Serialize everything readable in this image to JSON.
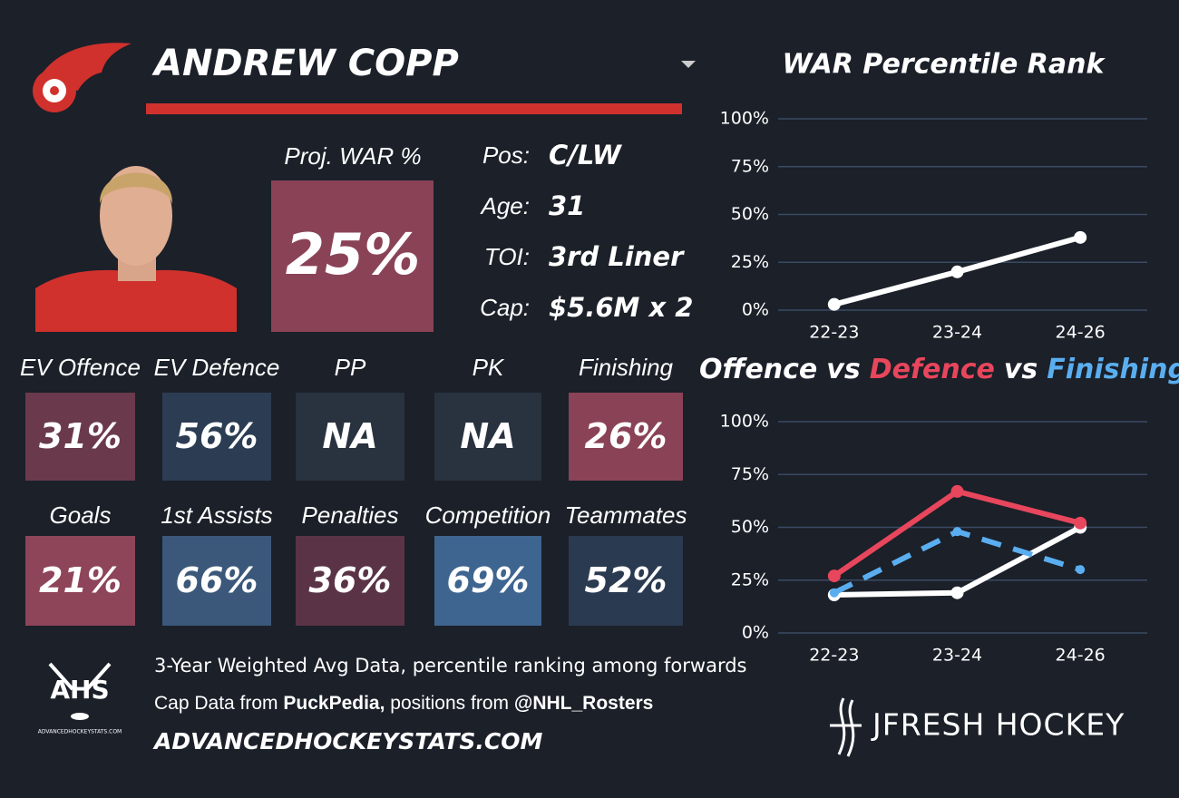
{
  "player": {
    "name": "ANDREW COPP"
  },
  "proj_war": {
    "label": "Proj. WAR %",
    "value": "25%",
    "color": "#8a4356"
  },
  "info": [
    {
      "label": "Pos:",
      "value": "C/LW"
    },
    {
      "label": "Age:",
      "value": "31"
    },
    {
      "label": "TOI:",
      "value": "3rd Liner"
    },
    {
      "label": "Cap:",
      "value": "$5.6M x 2"
    }
  ],
  "tiles": [
    {
      "label": "EV Offence",
      "value": "31%",
      "color": "#6a3a4c"
    },
    {
      "label": "EV Defence",
      "value": "56%",
      "color": "#2c3d53"
    },
    {
      "label": "PP",
      "value": "NA",
      "color": "#29323f"
    },
    {
      "label": "PK",
      "value": "NA",
      "color": "#29323f"
    },
    {
      "label": "Finishing",
      "value": "26%",
      "color": "#8a4356"
    },
    {
      "label": "Goals",
      "value": "21%",
      "color": "#8e4459"
    },
    {
      "label": "1st Assists",
      "value": "66%",
      "color": "#3b587a"
    },
    {
      "label": "Penalties",
      "value": "36%",
      "color": "#5a3446"
    },
    {
      "label": "Competition",
      "value": "69%",
      "color": "#3e6590"
    },
    {
      "label": "Teammates",
      "value": "52%",
      "color": "#2a3a50"
    }
  ],
  "footer": {
    "logo_text": "AHS",
    "logo_sub": "ADVANCEDHOCKEYSTATS.COM",
    "line1": "3-Year Weighted Avg Data, percentile ranking among forwards",
    "line2": [
      {
        "text": "Cap Data from "
      },
      {
        "text": "PuckPedia,",
        "bold": true
      },
      {
        "text": " positions from "
      },
      {
        "text": "@NHL_Rosters",
        "bold": true
      }
    ],
    "site": "ADVANCEDHOCKEYSTATS.COM",
    "brand": "JFRESH HOCKEY"
  },
  "chart_data": [
    {
      "type": "line",
      "title": "WAR Percentile Rank",
      "categories": [
        "22-23",
        "23-24",
        "24-26"
      ],
      "series": [
        {
          "color": "#ffffff",
          "values": [
            3,
            20,
            38
          ]
        }
      ],
      "ylim": [
        0,
        100
      ],
      "yticks": [
        {
          "value": 0,
          "label": "0%"
        },
        {
          "value": 25,
          "label": "25%"
        },
        {
          "value": 50,
          "label": "50%"
        },
        {
          "value": 75,
          "label": "75%"
        },
        {
          "value": 100,
          "label": "100%"
        }
      ],
      "grid": true
    },
    {
      "type": "line",
      "title_joiner": "vs",
      "categories": [
        "22-23",
        "23-24",
        "24-26"
      ],
      "series": [
        {
          "name": "Offence",
          "color": "#ffffff",
          "values": [
            18,
            19,
            50
          ]
        },
        {
          "name": "Defence",
          "color": "#e8465c",
          "values": [
            27,
            67,
            52
          ]
        },
        {
          "name": "Finishing",
          "color": "#5aaef0",
          "values": [
            19,
            48,
            30
          ],
          "dashed": true
        }
      ],
      "ylim": [
        0,
        100
      ],
      "yticks": [
        {
          "value": 0,
          "label": "0%"
        },
        {
          "value": 25,
          "label": "25%"
        },
        {
          "value": 50,
          "label": "50%"
        },
        {
          "value": 75,
          "label": "75%"
        },
        {
          "value": 100,
          "label": "100%"
        }
      ],
      "grid": true
    }
  ]
}
